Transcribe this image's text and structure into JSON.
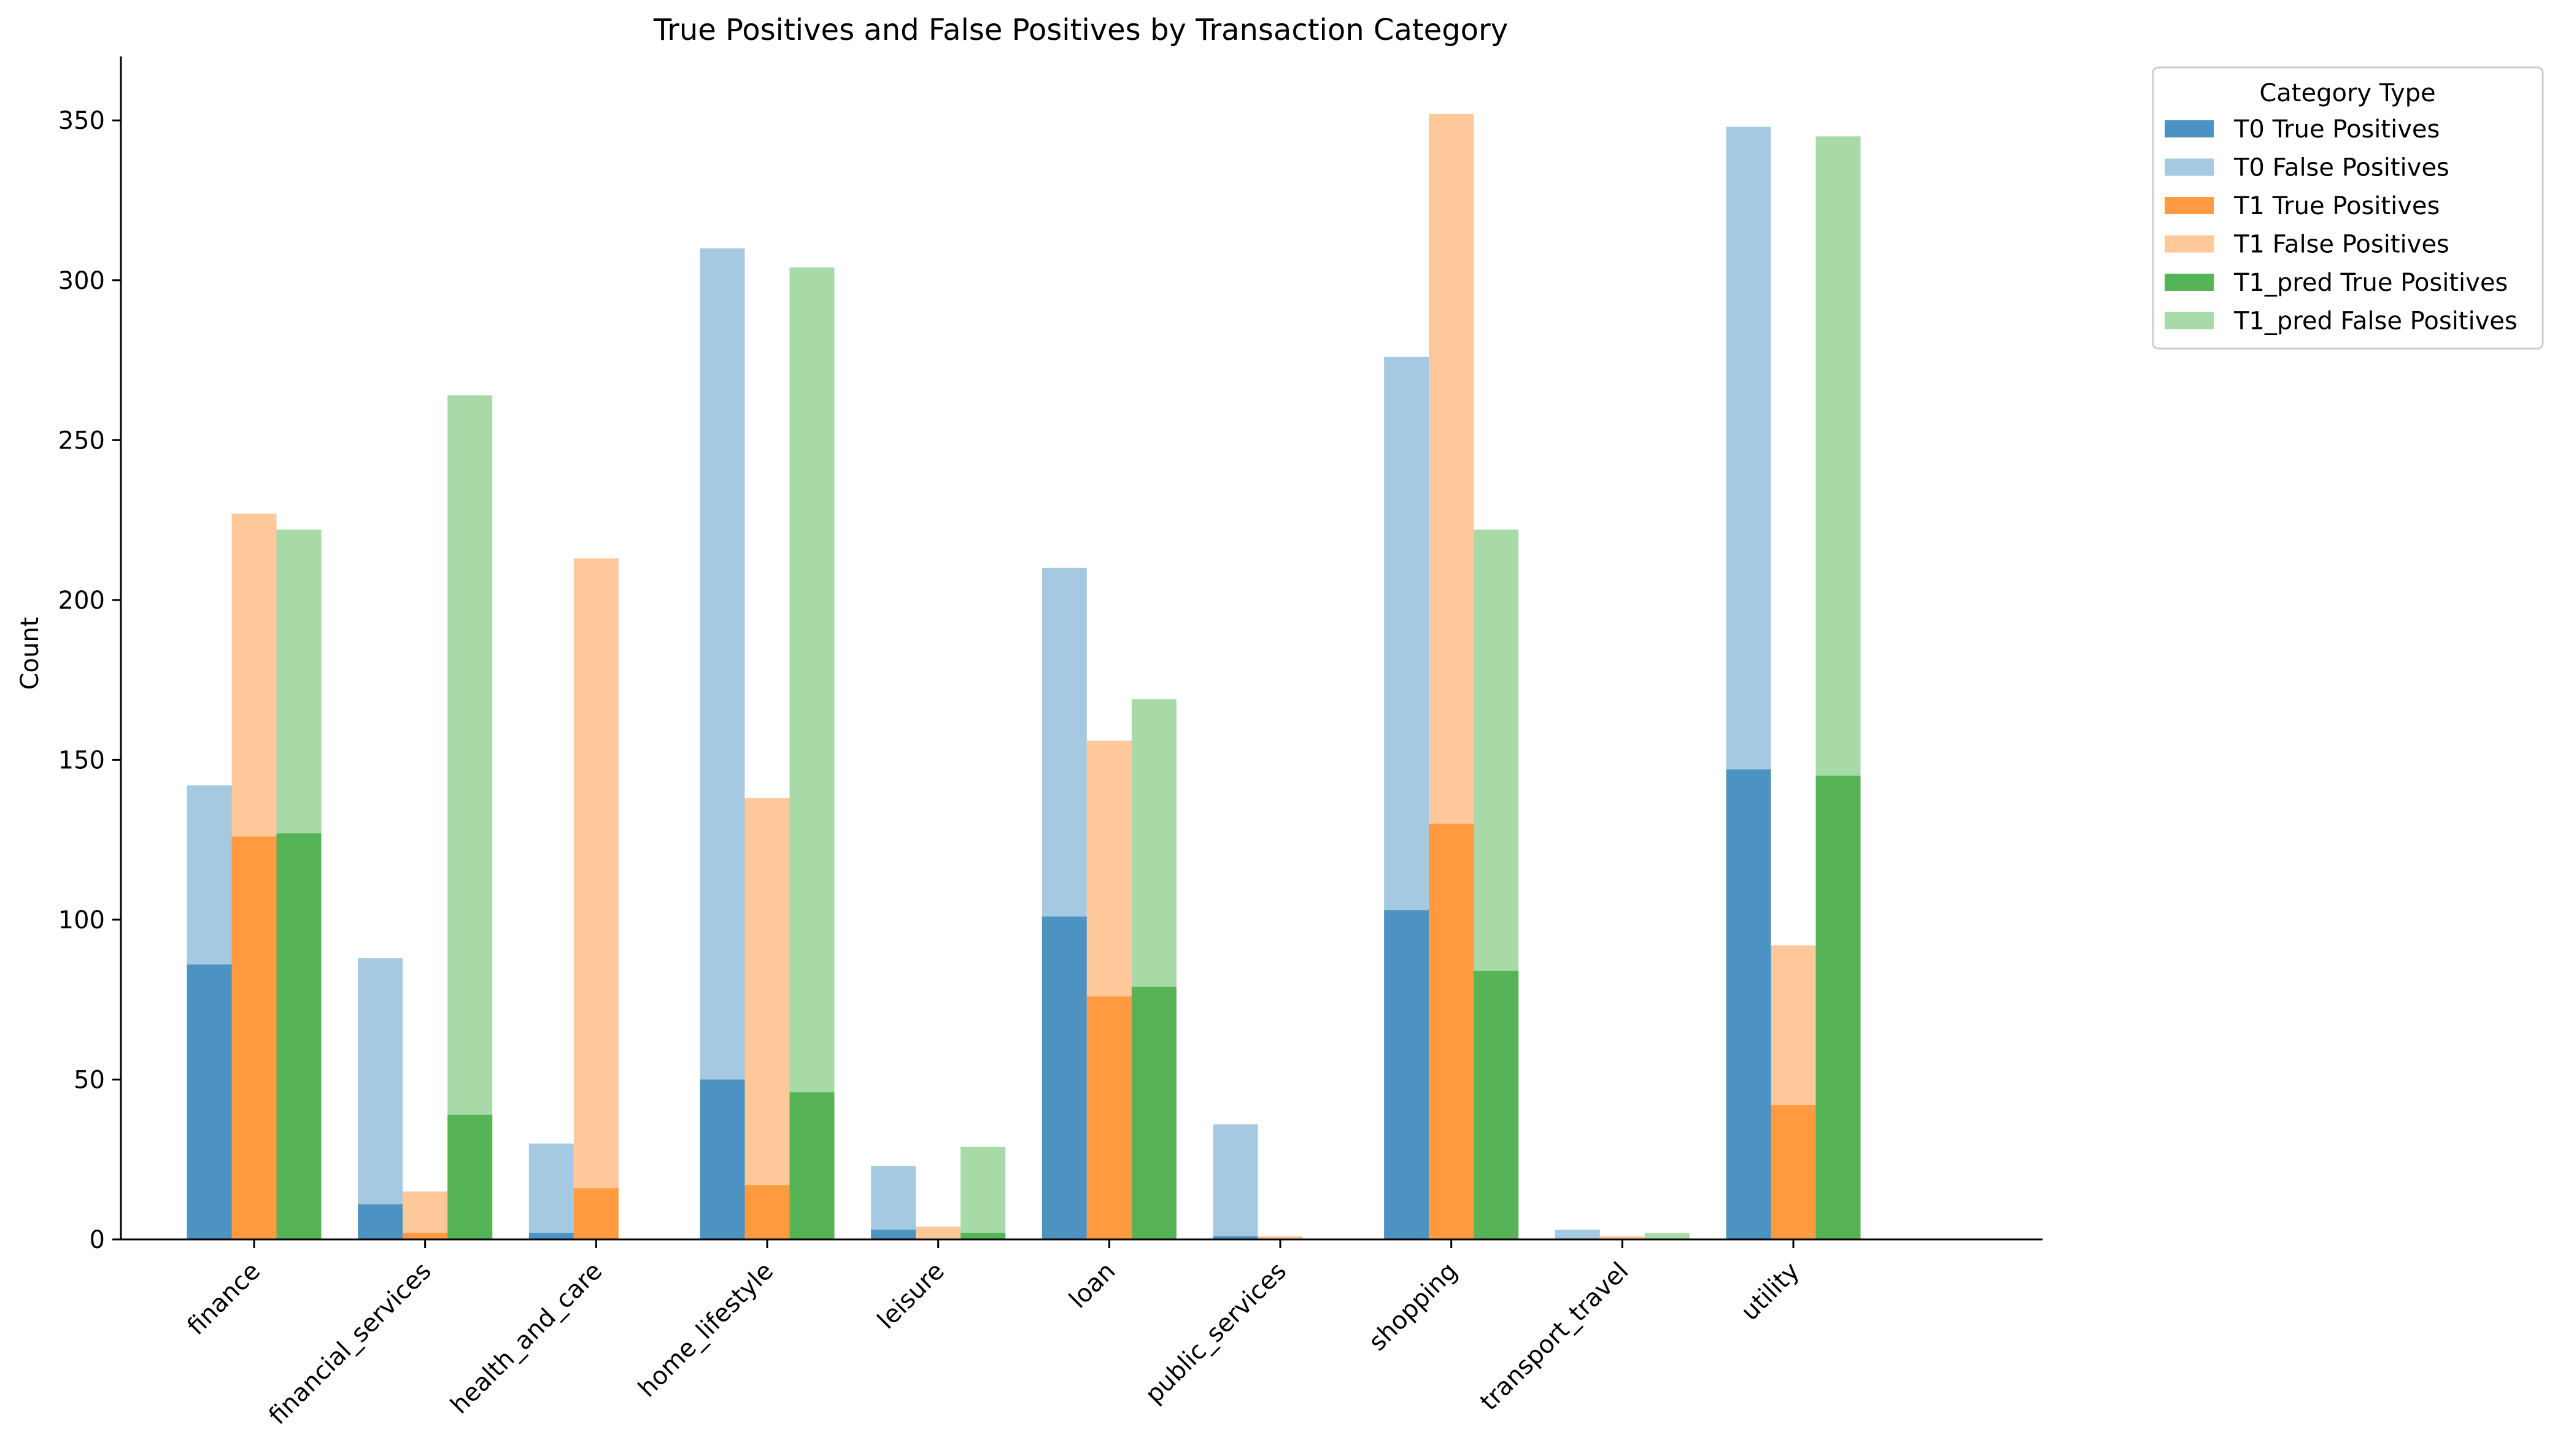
{
  "chart_data": {
    "type": "bar",
    "title": "True Positives and False Positives by Transaction Category",
    "xlabel": "",
    "ylabel": "Count",
    "ylim": [
      0,
      370
    ],
    "yticks": [
      0,
      50,
      100,
      150,
      200,
      250,
      300,
      350
    ],
    "grid": false,
    "legend_title": "Category Type",
    "legend_position": "outside-top-right",
    "categories": [
      "finance",
      "financial_services",
      "health_and_care",
      "home_lifestyle",
      "leisure",
      "loan",
      "public_services",
      "shopping",
      "transport_travel",
      "utility"
    ],
    "groups": [
      {
        "group": "T0",
        "tp_name": "T0 True Positives",
        "fp_name": "T0 False Positives",
        "tp_color": "#4c93c3",
        "fp_color": "#a6c9e2",
        "true_positives": [
          86,
          11,
          2,
          50,
          3,
          101,
          1,
          103,
          0,
          147
        ],
        "total": [
          142,
          88,
          30,
          310,
          23,
          210,
          36,
          276,
          3,
          348
        ]
      },
      {
        "group": "T1",
        "tp_name": "T1 True Positives",
        "fp_name": "T1 False Positives",
        "tp_color": "#ff9a40",
        "fp_color": "#ffc89b",
        "true_positives": [
          126,
          2,
          16,
          17,
          0,
          76,
          0,
          130,
          0,
          42
        ],
        "total": [
          227,
          15,
          213,
          138,
          4,
          156,
          1,
          352,
          1,
          92
        ]
      },
      {
        "group": "T1_pred",
        "tp_name": "T1_pred True Positives",
        "fp_name": "T1_pred False Positives",
        "tp_color": "#56b356",
        "fp_color": "#a8daa8",
        "true_positives": [
          127,
          39,
          0,
          46,
          2,
          79,
          0,
          84,
          0,
          145
        ],
        "total": [
          222,
          264,
          0,
          304,
          29,
          169,
          0,
          222,
          2,
          345
        ]
      }
    ]
  }
}
